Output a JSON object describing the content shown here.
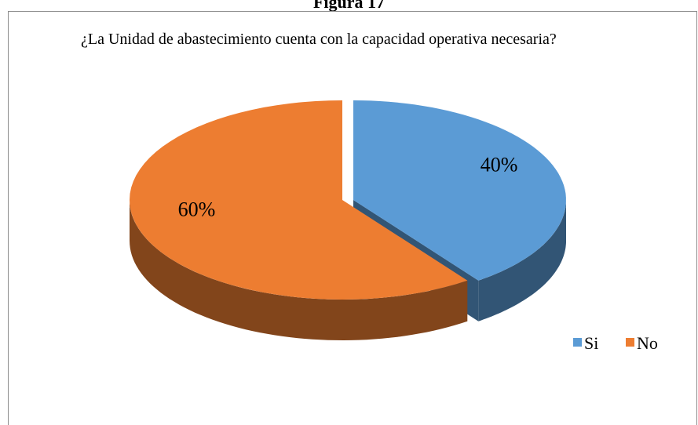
{
  "chart_data": {
    "type": "pie",
    "header": "Figura 17",
    "title": "¿La Unidad de abastecimiento cuenta con la capacidad operativa necesaria?",
    "categories": [
      "Si",
      "No"
    ],
    "values": [
      40,
      60
    ],
    "value_labels": [
      "40%",
      "60%"
    ],
    "colors": [
      "#5b9bd5",
      "#ed7d31"
    ]
  }
}
